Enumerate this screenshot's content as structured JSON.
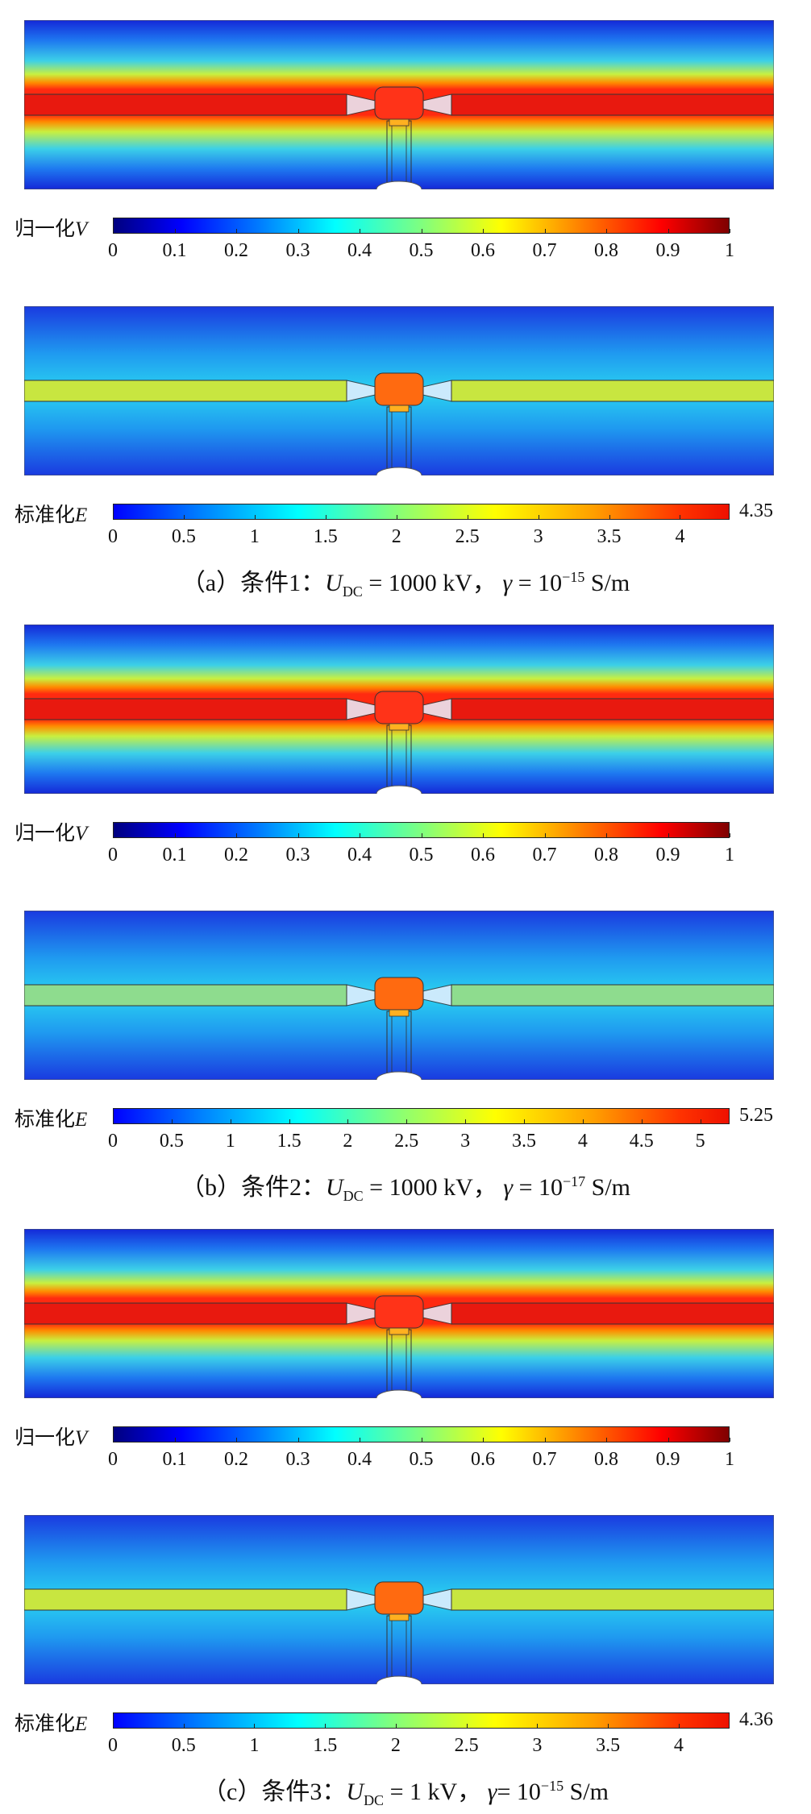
{
  "panels": [
    {
      "potential": {
        "label_text": "归一化",
        "label_var": "V",
        "ticks": [
          "0",
          "0.1",
          "0.2",
          "0.3",
          "0.4",
          "0.5",
          "0.6",
          "0.7",
          "0.8",
          "0.9",
          "1"
        ]
      },
      "field": {
        "label_text": "标准化",
        "label_var": "E",
        "ticks": [
          "0",
          "0.5",
          "1",
          "1.5",
          "2",
          "2.5",
          "3",
          "3.5",
          "4"
        ],
        "max": "4.35",
        "field_max": 4.35
      },
      "caption": {
        "prefix": "（a）条件1：",
        "u_var": "U",
        "u_sub": "DC",
        "u_value": " = 1000 kV，  ",
        "gamma": "γ",
        "gamma_rest": " = 10",
        "gamma_exp": "−15",
        "unit": " S/m"
      }
    },
    {
      "potential": {
        "label_text": "归一化",
        "label_var": "V",
        "ticks": [
          "0",
          "0.1",
          "0.2",
          "0.3",
          "0.4",
          "0.5",
          "0.6",
          "0.7",
          "0.8",
          "0.9",
          "1"
        ]
      },
      "field": {
        "label_text": "标准化",
        "label_var": "E",
        "ticks": [
          "0",
          "0.5",
          "1",
          "1.5",
          "2",
          "2.5",
          "3",
          "3.5",
          "4",
          "4.5",
          "5"
        ],
        "max": "5.25",
        "field_max": 5.25
      },
      "caption": {
        "prefix": "（b）条件2：",
        "u_var": "U",
        "u_sub": "DC",
        "u_value": " = 1000 kV，  ",
        "gamma": "γ",
        "gamma_rest": " = 10",
        "gamma_exp": "−17",
        "unit": " S/m"
      }
    },
    {
      "potential": {
        "label_text": "归一化",
        "label_var": "V",
        "ticks": [
          "0",
          "0.1",
          "0.2",
          "0.3",
          "0.4",
          "0.5",
          "0.6",
          "0.7",
          "0.8",
          "0.9",
          "1"
        ]
      },
      "field": {
        "label_text": "标准化",
        "label_var": "E",
        "ticks": [
          "0",
          "0.5",
          "1",
          "1.5",
          "2",
          "2.5",
          "3",
          "3.5",
          "4"
        ],
        "max": "4.36",
        "field_max": 4.36
      },
      "caption": {
        "prefix": "（c）条件3：",
        "u_var": "U",
        "u_sub": "DC",
        "u_value": " = 1 kV，  ",
        "gamma": "γ",
        "gamma_rest": "= 10",
        "gamma_exp": "−15",
        "unit": " S/m"
      }
    }
  ],
  "colors": {
    "bg_blue": "#1e46e6",
    "conductor_red": "#e8190f",
    "field_yellow": "#c8e640",
    "field_green": "#8edc8e"
  }
}
